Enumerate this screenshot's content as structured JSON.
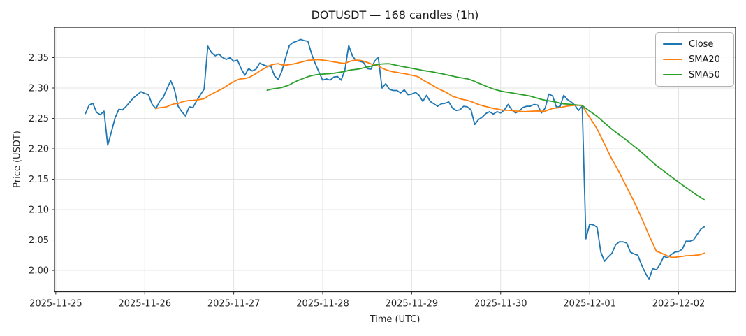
{
  "header": {
    "title": "DOTUSDT — 168 candles (1h)"
  },
  "axes": {
    "ylabel": "Price (USDT)",
    "xlabel": "Time (UTC)"
  },
  "chart_data": {
    "type": "line",
    "title": "DOTUSDT — 168 candles (1h)",
    "xlabel": "Time (UTC)",
    "ylabel": "Price (USDT)",
    "grid": true,
    "grid_color": "#e3e3e3",
    "legend_position": "upper right",
    "xlim": [
      -8.35,
      175.35
    ],
    "ylim": [
      1.965,
      2.4
    ],
    "yticks": [
      2.0,
      2.05,
      2.1,
      2.15,
      2.2,
      2.25,
      2.3,
      2.35
    ],
    "xticks": [
      {
        "hour": -8,
        "label": "2025-11-25"
      },
      {
        "hour": 16,
        "label": "2025-11-26"
      },
      {
        "hour": 40,
        "label": "2025-11-27"
      },
      {
        "hour": 64,
        "label": "2025-11-28"
      },
      {
        "hour": 88,
        "label": "2025-11-29"
      },
      {
        "hour": 112,
        "label": "2025-11-30"
      },
      {
        "hour": 136,
        "label": "2025-12-01"
      },
      {
        "hour": 160,
        "label": "2025-12-02"
      }
    ],
    "x_description": "hourly candles, one per hour index 0-167",
    "series": [
      {
        "name": "Close",
        "color": "#1f77b4",
        "values": [
          2.258,
          2.272,
          2.275,
          2.26,
          2.256,
          2.262,
          2.206,
          2.228,
          2.251,
          2.265,
          2.264,
          2.27,
          2.277,
          2.284,
          2.289,
          2.294,
          2.291,
          2.289,
          2.273,
          2.266,
          2.278,
          2.285,
          2.299,
          2.312,
          2.298,
          2.27,
          2.261,
          2.254,
          2.269,
          2.268,
          2.279,
          2.289,
          2.298,
          2.369,
          2.358,
          2.353,
          2.356,
          2.35,
          2.347,
          2.35,
          2.344,
          2.346,
          2.332,
          2.321,
          2.332,
          2.328,
          2.331,
          2.341,
          2.338,
          2.336,
          2.336,
          2.32,
          2.314,
          2.328,
          2.35,
          2.37,
          2.375,
          2.377,
          2.38,
          2.378,
          2.377,
          2.356,
          2.34,
          2.326,
          2.313,
          2.315,
          2.313,
          2.318,
          2.319,
          2.313,
          2.33,
          2.37,
          2.353,
          2.345,
          2.344,
          2.342,
          2.332,
          2.331,
          2.344,
          2.35,
          2.3,
          2.307,
          2.298,
          2.296,
          2.296,
          2.292,
          2.297,
          2.289,
          2.29,
          2.293,
          2.288,
          2.278,
          2.288,
          2.278,
          2.274,
          2.27,
          2.274,
          2.275,
          2.277,
          2.267,
          2.263,
          2.264,
          2.27,
          2.269,
          2.264,
          2.24,
          2.248,
          2.252,
          2.258,
          2.261,
          2.257,
          2.261,
          2.259,
          2.264,
          2.273,
          2.264,
          2.259,
          2.262,
          2.268,
          2.27,
          2.27,
          2.273,
          2.272,
          2.259,
          2.267,
          2.29,
          2.287,
          2.269,
          2.269,
          2.288,
          2.281,
          2.277,
          2.272,
          2.263,
          2.27,
          2.052,
          2.076,
          2.075,
          2.071,
          2.03,
          2.015,
          2.022,
          2.028,
          2.042,
          2.047,
          2.047,
          2.045,
          2.03,
          2.027,
          2.025,
          2.009,
          1.996,
          1.985,
          2.003,
          2.001,
          2.01,
          2.023,
          2.021,
          2.026,
          2.03,
          2.031,
          2.035,
          2.048,
          2.048,
          2.05,
          2.059,
          2.068,
          2.072
        ]
      },
      {
        "name": "SMA20",
        "color": "#ff7f0e",
        "derived": "simple moving average of Close",
        "window": 20
      },
      {
        "name": "SMA50",
        "color": "#2ca02c",
        "derived": "simple moving average of Close",
        "window": 50
      }
    ]
  }
}
